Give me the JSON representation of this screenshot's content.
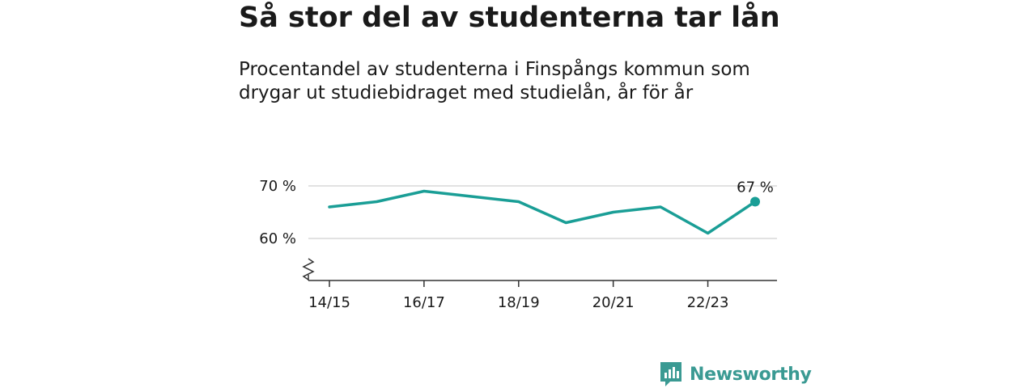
{
  "title": "Så stor del av studenterna tar lån",
  "subtitle": "Procentandel av studenterna i Finspångs kommun som drygar ut studiebidraget med studielån, år för år",
  "brand": {
    "name": "Newsworthy",
    "color": "#3a9a93"
  },
  "chart_data": {
    "type": "line",
    "x": [
      "14/15",
      "15/16",
      "16/17",
      "17/18",
      "18/19",
      "19/20",
      "20/21",
      "21/22",
      "22/23",
      "23/24"
    ],
    "x_tick_labels": [
      "14/15",
      "16/17",
      "18/19",
      "20/21",
      "22/23"
    ],
    "series": [
      {
        "values": [
          66,
          67,
          69,
          68,
          67,
          63,
          65,
          66,
          61,
          67
        ],
        "color": "#1a9e96"
      }
    ],
    "y_ticks": [
      {
        "value": 60,
        "label": "60 %"
      },
      {
        "value": 70,
        "label": "70 %"
      }
    ],
    "ylim": [
      52,
      72
    ],
    "y_axis_break": true,
    "grid": true,
    "end_label": "67 %"
  }
}
